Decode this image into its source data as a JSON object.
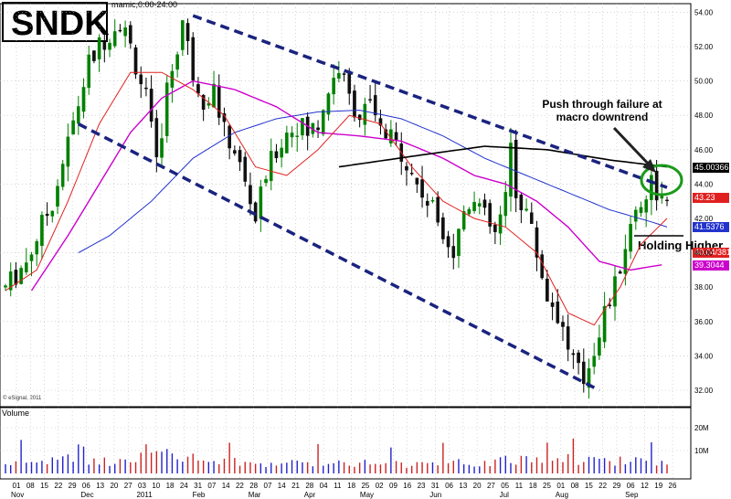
{
  "symbol": "SNDK",
  "header_text": "mamic,0:00-24:00",
  "copyright": "© eSignal, 2011",
  "volume_label": "Volume",
  "annotations": {
    "push_line1": "Push through failure at",
    "push_line2": "macro downtrend",
    "holding": "Holding Higher"
  },
  "colors": {
    "up_candle": "#008000",
    "down_candle": "#000000",
    "ma_fast": "#e02020",
    "ma_mid": "#cc00cc",
    "ma_slow": "#2233cc",
    "trendline": "#1a237e",
    "resistance": "#000000",
    "circle": "#1a9a1a",
    "volume_up": "#2222cc",
    "volume_down": "#cc2222",
    "grid": "#bbbbbb"
  },
  "chart_data": {
    "type": "candlestick",
    "title": "SNDK",
    "y_axis": {
      "ticks": [
        "32.00",
        "34.00",
        "36.00",
        "38.00",
        "40.00",
        "42.00",
        "44.00",
        "46.00",
        "48.00",
        "50.00",
        "52.00",
        "54.00"
      ],
      "ylim": [
        31,
        55
      ]
    },
    "volume_axis": {
      "ticks": [
        "10M",
        "20M"
      ]
    },
    "x_axis": {
      "day_ticks": [
        "01",
        "08",
        "15",
        "22",
        "29",
        "06",
        "13",
        "20",
        "27",
        "03",
        "10",
        "18",
        "24",
        "31",
        "07",
        "14",
        "22",
        "28",
        "07",
        "14",
        "21",
        "28",
        "04",
        "11",
        "18",
        "25",
        "02",
        "09",
        "16",
        "23",
        "31",
        "06",
        "13",
        "20",
        "27",
        "05",
        "11",
        "18",
        "25",
        "01",
        "08",
        "15",
        "22",
        "29",
        "06",
        "12",
        "19",
        "26"
      ],
      "month_labels": [
        "Nov",
        "Dec",
        "2011",
        "Feb",
        "Mar",
        "Apr",
        "May",
        "Jun",
        "Jul",
        "Aug",
        "Sep"
      ]
    },
    "price_tags": [
      {
        "label": "45.00366",
        "value": 45.0,
        "color": "#000000"
      },
      {
        "label": "43.23",
        "value": 43.23,
        "color": "#e02020"
      },
      {
        "label": "41.5376",
        "value": 41.54,
        "color": "#2233cc"
      },
      {
        "label": "40.04/381",
        "value": 40.04,
        "color": "#e02020"
      },
      {
        "label": "39.3044",
        "value": 39.3,
        "color": "#cc00cc"
      }
    ],
    "price_path": [
      [
        0,
        38.0
      ],
      [
        4,
        39.5
      ],
      [
        9,
        43.0
      ],
      [
        13,
        47.5
      ],
      [
        16,
        51.0
      ],
      [
        19,
        52.5
      ],
      [
        22,
        53.5
      ],
      [
        24,
        52.0
      ],
      [
        27,
        49.0
      ],
      [
        29,
        45.0
      ],
      [
        31,
        49.5
      ],
      [
        33,
        52.0
      ],
      [
        34,
        53.5
      ],
      [
        36,
        50.5
      ],
      [
        38,
        49.0
      ],
      [
        40,
        49.5
      ],
      [
        42,
        47.0
      ],
      [
        44,
        46.0
      ],
      [
        46,
        44.0
      ],
      [
        48,
        42.0
      ],
      [
        50,
        44.5
      ],
      [
        52,
        46.0
      ],
      [
        54,
        47.0
      ],
      [
        56,
        47.5
      ],
      [
        58,
        47.0
      ],
      [
        60,
        47.5
      ],
      [
        62,
        49.5
      ],
      [
        64,
        50.8
      ],
      [
        66,
        49.0
      ],
      [
        68,
        48.0
      ],
      [
        70,
        48.5
      ],
      [
        72,
        47.0
      ],
      [
        74,
        46.5
      ],
      [
        76,
        46.0
      ],
      [
        78,
        44.5
      ],
      [
        80,
        43.5
      ],
      [
        82,
        42.5
      ],
      [
        84,
        41.5
      ],
      [
        86,
        40.0
      ],
      [
        88,
        42.5
      ],
      [
        90,
        43.5
      ],
      [
        92,
        42.0
      ],
      [
        94,
        41.0
      ],
      [
        96,
        43.0
      ],
      [
        97,
        46.2
      ],
      [
        98,
        43.5
      ],
      [
        100,
        42.5
      ],
      [
        102,
        40.0
      ],
      [
        104,
        37.5
      ],
      [
        106,
        36.5
      ],
      [
        108,
        34.5
      ],
      [
        110,
        33.0
      ],
      [
        111,
        32.6
      ],
      [
        113,
        34.5
      ],
      [
        115,
        36.5
      ],
      [
        117,
        38.0
      ],
      [
        119,
        40.5
      ],
      [
        121,
        42.5
      ],
      [
        123,
        43.5
      ],
      [
        124,
        44.2
      ],
      [
        126,
        43.0
      ],
      [
        127,
        42.5
      ]
    ],
    "volume_path": [
      [
        0,
        4
      ],
      [
        10,
        6
      ],
      [
        20,
        5
      ],
      [
        27,
        9
      ],
      [
        33,
        7
      ],
      [
        40,
        5
      ],
      [
        55,
        4
      ],
      [
        65,
        5
      ],
      [
        75,
        4
      ],
      [
        85,
        4
      ],
      [
        95,
        5
      ],
      [
        100,
        6
      ],
      [
        105,
        7
      ],
      [
        110,
        6
      ],
      [
        115,
        5
      ],
      [
        120,
        6
      ],
      [
        127,
        5
      ]
    ],
    "ma_fast_path": [
      [
        0,
        37.8
      ],
      [
        6,
        39.0
      ],
      [
        12,
        43.0
      ],
      [
        18,
        47.5
      ],
      [
        24,
        50.5
      ],
      [
        30,
        50.5
      ],
      [
        36,
        49.5
      ],
      [
        42,
        48.0
      ],
      [
        48,
        45.0
      ],
      [
        54,
        44.5
      ],
      [
        60,
        46.0
      ],
      [
        66,
        48.0
      ],
      [
        72,
        47.5
      ],
      [
        78,
        45.0
      ],
      [
        84,
        43.0
      ],
      [
        90,
        42.0
      ],
      [
        96,
        41.5
      ],
      [
        102,
        40.0
      ],
      [
        108,
        36.5
      ],
      [
        113,
        35.8
      ],
      [
        118,
        38.0
      ],
      [
        122,
        40.5
      ],
      [
        127,
        42.0
      ]
    ],
    "ma_mid_path": [
      [
        5,
        37.8
      ],
      [
        12,
        41.0
      ],
      [
        18,
        44.0
      ],
      [
        24,
        47.0
      ],
      [
        30,
        49.0
      ],
      [
        36,
        50.0
      ],
      [
        44,
        49.5
      ],
      [
        52,
        48.5
      ],
      [
        60,
        47.0
      ],
      [
        68,
        46.8
      ],
      [
        76,
        46.5
      ],
      [
        84,
        45.5
      ],
      [
        90,
        44.5
      ],
      [
        96,
        44.0
      ],
      [
        102,
        43.0
      ],
      [
        108,
        41.5
      ],
      [
        114,
        39.5
      ],
      [
        120,
        39.0
      ],
      [
        126,
        39.3
      ]
    ],
    "ma_slow_path": [
      [
        14,
        40.0
      ],
      [
        20,
        41.0
      ],
      [
        28,
        43.0
      ],
      [
        36,
        45.5
      ],
      [
        44,
        47.0
      ],
      [
        52,
        47.8
      ],
      [
        60,
        48.2
      ],
      [
        68,
        48.3
      ],
      [
        76,
        47.8
      ],
      [
        84,
        46.8
      ],
      [
        92,
        45.5
      ],
      [
        100,
        44.5
      ],
      [
        108,
        43.5
      ],
      [
        116,
        42.5
      ],
      [
        124,
        41.8
      ],
      [
        127,
        41.5
      ]
    ],
    "trend_upper": [
      [
        36,
        53.8
      ],
      [
        127,
        43.8
      ]
    ],
    "trend_lower": [
      [
        14,
        47.5
      ],
      [
        114,
        32.0
      ]
    ],
    "resistance_curve": [
      [
        64,
        45.0
      ],
      [
        80,
        45.7
      ],
      [
        92,
        46.2
      ],
      [
        104,
        46.0
      ],
      [
        116,
        45.4
      ],
      [
        127,
        45.0
      ]
    ]
  }
}
